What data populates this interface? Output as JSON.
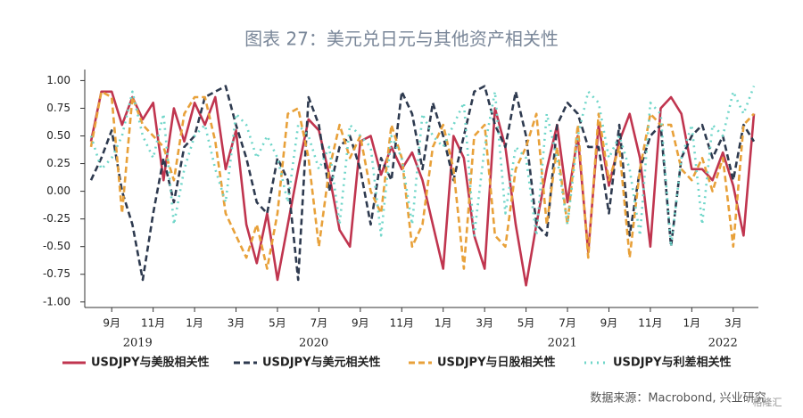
{
  "chart_data": {
    "type": "line",
    "title": "图表 27：美元兑日元与其他资产相关性",
    "categories": [
      null,
      null,
      "9月",
      null,
      null,
      null,
      "11月",
      null,
      null,
      null,
      "1月",
      null,
      null,
      null,
      "3月",
      null,
      null,
      null,
      "5月",
      null,
      null,
      null,
      "7月",
      null,
      null,
      null,
      "9月",
      null,
      null,
      null,
      "11月",
      null,
      null,
      null,
      "1月",
      null,
      null,
      null,
      "3月",
      null,
      null,
      null,
      "5月",
      null,
      null,
      null,
      "7月",
      null,
      null,
      null,
      "9月",
      null,
      null,
      null,
      "11月",
      null,
      null,
      null,
      "1月",
      null,
      null,
      null,
      "3月",
      null,
      null
    ],
    "years": [
      "2019",
      "2020",
      "2021",
      "2022"
    ],
    "series": [
      {
        "name": "USDJPY与美股相关性",
        "color": "#c0354f",
        "dash": "solid",
        "values": [
          0.45,
          0.9,
          0.9,
          0.6,
          0.85,
          0.65,
          0.8,
          0.1,
          0.75,
          0.45,
          0.8,
          0.6,
          0.85,
          0.2,
          0.55,
          -0.3,
          -0.65,
          -0.2,
          -0.8,
          -0.3,
          0.2,
          0.65,
          0.55,
          0.15,
          -0.35,
          -0.5,
          0.45,
          0.5,
          0.15,
          0.4,
          0.2,
          0.35,
          0.1,
          -0.3,
          -0.7,
          0.5,
          0.3,
          -0.4,
          -0.7,
          0.75,
          0.4,
          -0.3,
          -0.85,
          -0.3,
          0.2,
          0.6,
          -0.1,
          0.5,
          -0.55,
          0.6,
          0.05,
          0.45,
          0.7,
          0.3,
          -0.5,
          0.75,
          0.85,
          0.7,
          0.2,
          0.2,
          0.1,
          0.35,
          0.05,
          -0.4,
          0.7
        ]
      },
      {
        "name": "USDJPY与美元相关性",
        "color": "#2e3a4f",
        "dash": "dashed",
        "values": [
          0.1,
          0.3,
          0.55,
          0.0,
          -0.3,
          -0.8,
          -0.2,
          0.3,
          -0.1,
          0.4,
          0.5,
          0.85,
          0.9,
          0.95,
          0.6,
          0.3,
          -0.1,
          -0.2,
          0.3,
          0.1,
          -0.8,
          0.85,
          0.6,
          0.0,
          0.4,
          0.5,
          0.2,
          -0.3,
          0.3,
          0.1,
          0.9,
          0.7,
          0.2,
          0.8,
          0.5,
          0.1,
          0.5,
          0.9,
          0.95,
          0.6,
          0.4,
          0.9,
          0.5,
          -0.3,
          -0.4,
          0.6,
          0.8,
          0.7,
          0.4,
          0.4,
          -0.2,
          0.6,
          -0.4,
          0.2,
          0.5,
          0.6,
          -0.5,
          0.3,
          0.5,
          0.6,
          0.3,
          0.5,
          0.1,
          0.6,
          0.45
        ]
      },
      {
        "name": "USDJPY与日股相关性",
        "color": "#e8a13a",
        "dash": "dashed",
        "values": [
          0.4,
          0.9,
          0.85,
          -0.2,
          0.85,
          0.6,
          0.5,
          0.4,
          0.1,
          0.7,
          0.85,
          0.85,
          0.45,
          -0.2,
          -0.4,
          -0.6,
          -0.3,
          -0.7,
          -0.2,
          0.7,
          0.75,
          0.3,
          -0.5,
          0.2,
          0.6,
          0.3,
          0.5,
          0.0,
          -0.2,
          0.6,
          0.3,
          -0.5,
          -0.3,
          0.4,
          0.6,
          0.2,
          -0.7,
          0.5,
          0.6,
          -0.4,
          -0.5,
          0.2,
          0.4,
          0.7,
          -0.3,
          0.4,
          -0.3,
          0.6,
          -0.6,
          0.7,
          0.1,
          0.4,
          -0.6,
          0.2,
          0.7,
          0.6,
          0.6,
          0.2,
          0.1,
          0.3,
          0.0,
          0.3,
          -0.5,
          0.6,
          0.7
        ]
      },
      {
        "name": "USDJPY与利差相关性",
        "color": "#6fd6c9",
        "dash": "dotted",
        "values": [
          0.5,
          0.2,
          0.3,
          0.5,
          0.9,
          0.5,
          0.3,
          0.7,
          -0.3,
          0.2,
          0.5,
          0.6,
          0.2,
          -0.1,
          0.7,
          0.6,
          0.3,
          0.5,
          0.3,
          -0.1,
          0.6,
          0.5,
          0.2,
          0.4,
          -0.3,
          0.6,
          0.5,
          0.4,
          -0.4,
          0.5,
          0.3,
          -0.3,
          0.7,
          0.5,
          0.4,
          0.6,
          0.8,
          -0.4,
          0.4,
          0.9,
          -0.2,
          0.4,
          0.3,
          -0.4,
          0.7,
          0.3,
          -0.3,
          0.5,
          0.9,
          0.8,
          0.3,
          0.5,
          0.2,
          -0.4,
          0.8,
          0.7,
          -0.5,
          0.3,
          0.6,
          -0.3,
          0.6,
          0.5,
          0.9,
          0.7,
          0.95
        ]
      }
    ],
    "ylim": [
      -1.05,
      1.1
    ],
    "yticks": [
      {
        "value": -1,
        "label": "-1.00"
      },
      {
        "value": -0.75,
        "label": "-0.75"
      },
      {
        "value": -0.5,
        "label": "-0.50"
      },
      {
        "value": -0.25,
        "label": "-0.25"
      },
      {
        "value": 0,
        "label": "0.00"
      },
      {
        "value": 0.25,
        "label": "0.25"
      },
      {
        "value": 0.5,
        "label": "0.50"
      },
      {
        "value": 0.75,
        "label": "0.75"
      },
      {
        "value": 1,
        "label": "1.00"
      }
    ],
    "grid": false,
    "legend": "bottom",
    "source": "数据来源：Macrobond, 兴业研究",
    "watermark": "格隆汇"
  }
}
